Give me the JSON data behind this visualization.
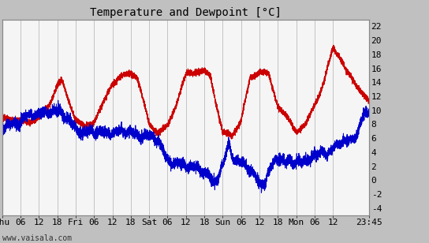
{
  "title": "Temperature and Dewpoint [°C]",
  "ylabel_right_ticks": [
    -4,
    -2,
    0,
    2,
    4,
    6,
    8,
    10,
    12,
    14,
    16,
    18,
    20,
    22
  ],
  "ylim": [
    -5,
    23
  ],
  "xlabel_ticks": [
    "Thu",
    "06",
    "12",
    "18",
    "Fri",
    "06",
    "12",
    "18",
    "Sat",
    "06",
    "12",
    "18",
    "Sun",
    "06",
    "12",
    "18",
    "Mon",
    "06",
    "12",
    "23:45"
  ],
  "tick_positions": [
    0,
    360,
    720,
    1080,
    1440,
    1800,
    2160,
    2520,
    2880,
    3240,
    3600,
    3960,
    4320,
    4680,
    5040,
    5400,
    5760,
    6120,
    6480,
    7185
  ],
  "xlim": [
    0,
    7185
  ],
  "background_color": "#c0c0c0",
  "plot_bg_color": "#f5f5f5",
  "temp_color": "#cc0000",
  "dewpoint_color": "#0000cc",
  "grid_color": "#b0b0b0",
  "watermark": "www.vaisala.com",
  "title_fontsize": 10,
  "tick_fontsize": 8,
  "watermark_fontsize": 7,
  "line_width": 0.7,
  "temp_control": [
    [
      0,
      9.0
    ],
    [
      180,
      9.0
    ],
    [
      360,
      8.5
    ],
    [
      540,
      8.5
    ],
    [
      720,
      9.0
    ],
    [
      900,
      10.5
    ],
    [
      1080,
      13.5
    ],
    [
      1170,
      14.0
    ],
    [
      1260,
      12.0
    ],
    [
      1440,
      8.5
    ],
    [
      1620,
      7.5
    ],
    [
      1800,
      8.5
    ],
    [
      1980,
      11.0
    ],
    [
      2160,
      14.0
    ],
    [
      2340,
      15.0
    ],
    [
      2520,
      15.5
    ],
    [
      2640,
      15.0
    ],
    [
      2880,
      8.0
    ],
    [
      3060,
      6.5
    ],
    [
      3240,
      7.5
    ],
    [
      3420,
      11.0
    ],
    [
      3600,
      15.0
    ],
    [
      3780,
      15.5
    ],
    [
      3960,
      15.5
    ],
    [
      4080,
      15.0
    ],
    [
      4320,
      7.0
    ],
    [
      4500,
      6.5
    ],
    [
      4680,
      8.5
    ],
    [
      4860,
      14.5
    ],
    [
      5040,
      15.5
    ],
    [
      5220,
      15.0
    ],
    [
      5400,
      10.5
    ],
    [
      5500,
      9.5
    ],
    [
      5760,
      7.0
    ],
    [
      5940,
      8.0
    ],
    [
      6120,
      11.0
    ],
    [
      6300,
      14.0
    ],
    [
      6480,
      19.0
    ],
    [
      6600,
      18.0
    ],
    [
      6720,
      16.0
    ],
    [
      6900,
      14.0
    ],
    [
      7185,
      11.0
    ]
  ],
  "dew_control": [
    [
      0,
      7.5
    ],
    [
      180,
      8.0
    ],
    [
      360,
      8.5
    ],
    [
      540,
      9.0
    ],
    [
      720,
      9.5
    ],
    [
      900,
      10.0
    ],
    [
      1080,
      10.0
    ],
    [
      1260,
      9.0
    ],
    [
      1440,
      7.5
    ],
    [
      1620,
      6.5
    ],
    [
      1800,
      6.5
    ],
    [
      1980,
      7.0
    ],
    [
      2160,
      7.0
    ],
    [
      2340,
      7.0
    ],
    [
      2520,
      7.0
    ],
    [
      2640,
      6.5
    ],
    [
      2880,
      6.0
    ],
    [
      3060,
      5.5
    ],
    [
      3240,
      3.0
    ],
    [
      3420,
      2.5
    ],
    [
      3600,
      2.0
    ],
    [
      3780,
      2.0
    ],
    [
      3900,
      1.5
    ],
    [
      3960,
      1.0
    ],
    [
      4050,
      0.5
    ],
    [
      4100,
      -0.5
    ],
    [
      4140,
      -0.8
    ],
    [
      4200,
      -0.3
    ],
    [
      4320,
      2.0
    ],
    [
      4440,
      5.5
    ],
    [
      4500,
      4.0
    ],
    [
      4560,
      3.0
    ],
    [
      4680,
      2.5
    ],
    [
      4800,
      2.0
    ],
    [
      4860,
      1.5
    ],
    [
      4920,
      1.0
    ],
    [
      4980,
      0.5
    ],
    [
      5040,
      -0.5
    ],
    [
      5160,
      -0.3
    ],
    [
      5220,
      1.0
    ],
    [
      5400,
      3.0
    ],
    [
      5500,
      2.5
    ],
    [
      5760,
      3.0
    ],
    [
      5880,
      2.5
    ],
    [
      6000,
      3.0
    ],
    [
      6120,
      3.5
    ],
    [
      6240,
      4.0
    ],
    [
      6300,
      4.5
    ],
    [
      6360,
      3.5
    ],
    [
      6480,
      4.0
    ],
    [
      6600,
      5.0
    ],
    [
      6720,
      5.5
    ],
    [
      6840,
      6.0
    ],
    [
      6960,
      7.0
    ],
    [
      7080,
      9.5
    ],
    [
      7185,
      9.5
    ]
  ]
}
